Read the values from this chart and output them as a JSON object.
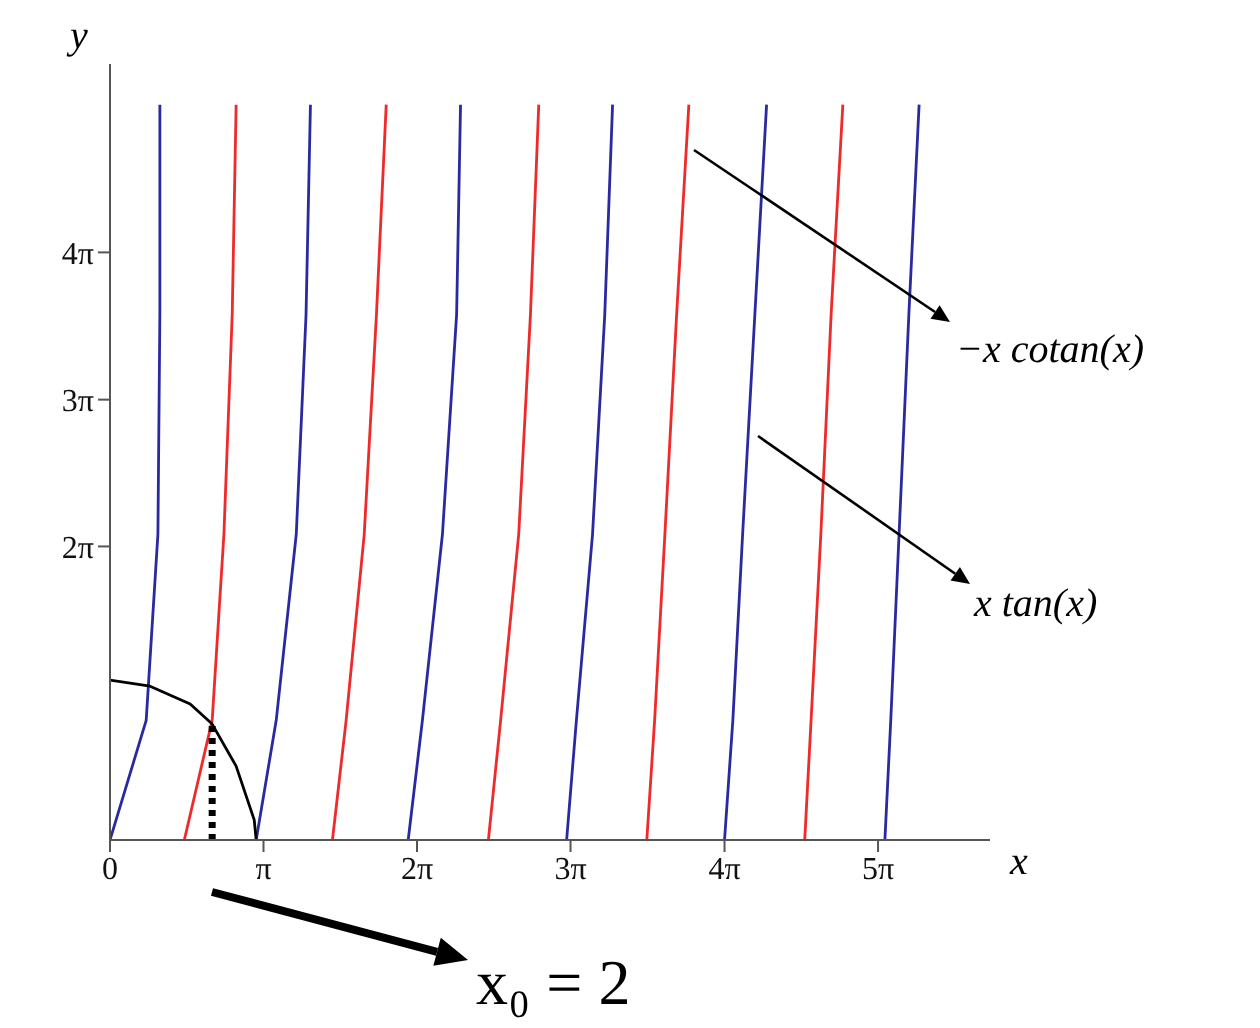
{
  "chart_data": {
    "type": "line",
    "xlabel": "x",
    "ylabel": "y",
    "xlim": [
      0,
      18
    ],
    "ylim": [
      0,
      16.6
    ],
    "xticks": [
      {
        "value": 0,
        "label": "0"
      },
      {
        "value": 3.14,
        "label": "π"
      },
      {
        "value": 6.28,
        "label": "2π"
      },
      {
        "value": 9.42,
        "label": "3π"
      },
      {
        "value": 12.57,
        "label": "4π"
      },
      {
        "value": 15.71,
        "label": "5π"
      }
    ],
    "yticks": [
      {
        "value": 6.28,
        "label": "2π"
      },
      {
        "value": 9.42,
        "label": "3π"
      },
      {
        "value": 12.57,
        "label": "4π"
      }
    ],
    "marker": "none",
    "line_style": "solid",
    "series": [
      {
        "name": "x tan(x)",
        "color": "#2a2aa0",
        "x": [
          0,
          0.74,
          0.98,
          1.02,
          1.02,
          null,
          2.99,
          3.4,
          3.81,
          4.01,
          4.1,
          null,
          6.1,
          6.39,
          6.8,
          7.09,
          7.17,
          null,
          9.34,
          9.54,
          9.87,
          10.12,
          10.28,
          null,
          12.57,
          12.74,
          12.94,
          13.19,
          13.43,
          null,
          15.85,
          15.97,
          16.14,
          16.34,
          16.55
        ],
        "values": [
          0,
          2.56,
          6.54,
          11.24,
          15.73,
          null,
          0,
          2.56,
          6.54,
          11.24,
          15.73,
          null,
          0,
          2.56,
          6.54,
          11.24,
          15.73,
          null,
          0,
          2.56,
          6.54,
          11.24,
          15.73,
          null,
          0,
          2.56,
          6.54,
          11.24,
          15.73,
          null,
          0,
          2.56,
          6.54,
          11.24,
          15.73
        ]
      },
      {
        "name": "−x cotan(x)",
        "color": "#ee2a2a",
        "x": [
          1.52,
          2.09,
          2.33,
          2.5,
          2.58,
          null,
          4.55,
          4.83,
          5.2,
          5.45,
          5.65,
          null,
          7.74,
          7.99,
          8.36,
          8.6,
          8.77,
          null,
          10.98,
          11.14,
          11.35,
          11.59,
          11.84,
          null,
          14.21,
          14.34,
          14.54,
          14.75,
          14.99
        ],
        "values": [
          0,
          2.56,
          6.54,
          11.24,
          15.73,
          null,
          0,
          2.56,
          6.54,
          11.24,
          15.73,
          null,
          0,
          2.56,
          6.54,
          11.24,
          15.73,
          null,
          0,
          2.56,
          6.54,
          11.24,
          15.73,
          null,
          0,
          2.56,
          6.54,
          11.24,
          15.73
        ]
      },
      {
        "color": "#000000",
        "x": [
          0,
          0.82,
          1.64,
          2.09,
          2.58,
          2.95,
          2.99
        ],
        "values": [
          3.42,
          3.29,
          2.91,
          2.48,
          1.58,
          0.43,
          0
        ]
      },
      {
        "color": "#000000",
        "line_style": "dotted",
        "x": [
          2.09,
          2.09
        ],
        "values": [
          0,
          2.48
        ]
      }
    ],
    "annotations": [
      "x₀ = 2"
    ]
  }
}
